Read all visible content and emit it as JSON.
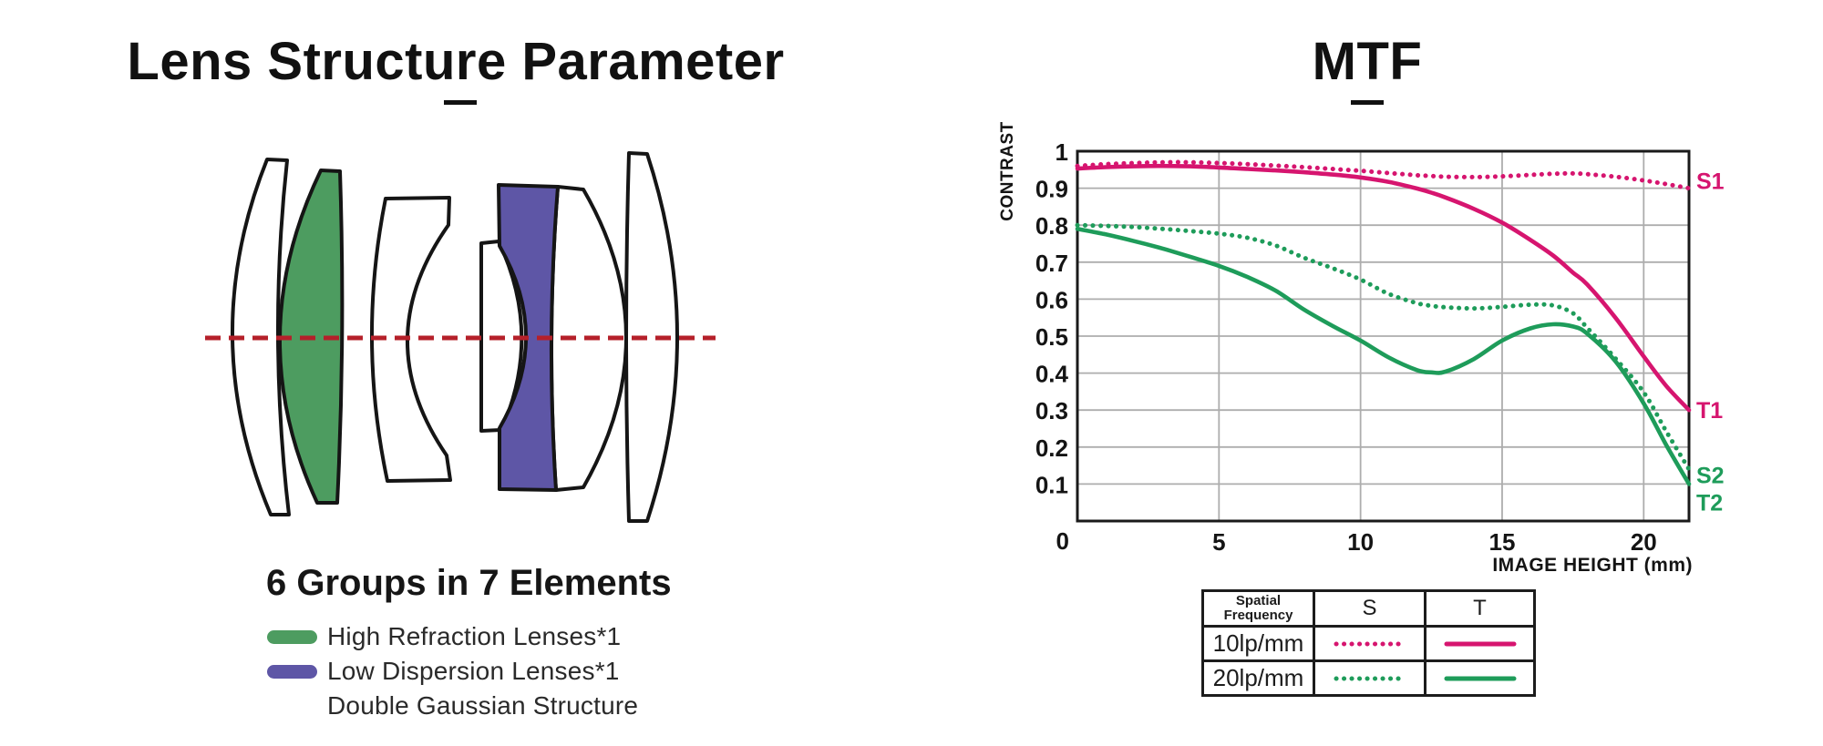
{
  "colors": {
    "ink": "#111111",
    "pink": "#D6156F",
    "green": "#1E9C5A",
    "lens_green": "#4D9C60",
    "lens_purple": "#5E56A6",
    "axis_red": "#B5202A",
    "grid": "#ADADAD"
  },
  "lens": {
    "title": "Lens Structure Parameter",
    "groups_label": "6 Groups in 7 Elements",
    "elements_count": 7,
    "groups_count": 6,
    "legend": [
      {
        "label": "High Refraction Lenses*1",
        "swatch": "lens_green"
      },
      {
        "label": "Low Dispersion Lenses*1",
        "swatch": "lens_purple"
      },
      {
        "label": "Double Gaussian Structure",
        "swatch": null
      }
    ]
  },
  "mtf": {
    "title": "MTF",
    "table": {
      "header_spatial": "Spatial\nFrequency",
      "header_s": "S",
      "header_t": "T",
      "rows": [
        {
          "label": "10lp/mm",
          "color": "pink"
        },
        {
          "label": "20lp/mm",
          "color": "green"
        }
      ]
    }
  },
  "chart_data": {
    "type": "line",
    "title": "MTF",
    "xlabel": "IMAGE HEIGHT  (mm)",
    "ylabel": "CONTRAST",
    "xlim": [
      0,
      21.6
    ],
    "ylim": [
      0,
      1
    ],
    "x_ticks": [
      0,
      5,
      10,
      15,
      20
    ],
    "y_ticks": [
      1,
      0.9,
      0.8,
      0.7,
      0.6,
      0.5,
      0.4,
      0.3,
      0.2,
      0.1
    ],
    "grid": true,
    "legend_position": "right",
    "x": [
      0,
      1,
      2,
      3,
      4,
      5,
      6,
      7,
      8,
      9,
      10,
      11,
      12,
      12.5,
      13,
      14,
      15,
      16,
      16.8,
      17.5,
      18,
      19,
      20,
      20.8,
      21.6
    ],
    "series": [
      {
        "name": "S1",
        "frequency": "10lp/mm",
        "orientation": "sagittal",
        "style": "dotted",
        "color": "pink",
        "label_value": 0.92,
        "y": [
          0.96,
          0.965,
          0.968,
          0.97,
          0.97,
          0.968,
          0.965,
          0.961,
          0.957,
          0.952,
          0.947,
          0.941,
          0.935,
          0.933,
          0.931,
          0.93,
          0.932,
          0.936,
          0.939,
          0.94,
          0.938,
          0.931,
          0.921,
          0.911,
          0.9
        ]
      },
      {
        "name": "T1",
        "frequency": "10lp/mm",
        "orientation": "tangential",
        "style": "solid",
        "color": "pink",
        "label_value": 0.3,
        "y": [
          0.953,
          0.957,
          0.959,
          0.96,
          0.959,
          0.956,
          0.952,
          0.948,
          0.943,
          0.937,
          0.929,
          0.917,
          0.899,
          0.888,
          0.875,
          0.844,
          0.807,
          0.76,
          0.718,
          0.672,
          0.64,
          0.55,
          0.445,
          0.365,
          0.3
        ]
      },
      {
        "name": "S2",
        "frequency": "20lp/mm",
        "orientation": "sagittal",
        "style": "dotted",
        "color": "green",
        "label_value": 0.125,
        "y": [
          0.8,
          0.798,
          0.795,
          0.79,
          0.784,
          0.777,
          0.766,
          0.745,
          0.712,
          0.684,
          0.653,
          0.614,
          0.589,
          0.582,
          0.578,
          0.575,
          0.579,
          0.585,
          0.583,
          0.562,
          0.523,
          0.44,
          0.348,
          0.242,
          0.14
        ]
      },
      {
        "name": "T2",
        "frequency": "20lp/mm",
        "orientation": "tangential",
        "style": "solid",
        "color": "green",
        "label_value": 0.05,
        "y": [
          0.79,
          0.775,
          0.757,
          0.737,
          0.714,
          0.69,
          0.66,
          0.623,
          0.572,
          0.528,
          0.488,
          0.442,
          0.408,
          0.402,
          0.404,
          0.438,
          0.488,
          0.521,
          0.532,
          0.526,
          0.507,
          0.432,
          0.318,
          0.205,
          0.1
        ]
      }
    ]
  }
}
